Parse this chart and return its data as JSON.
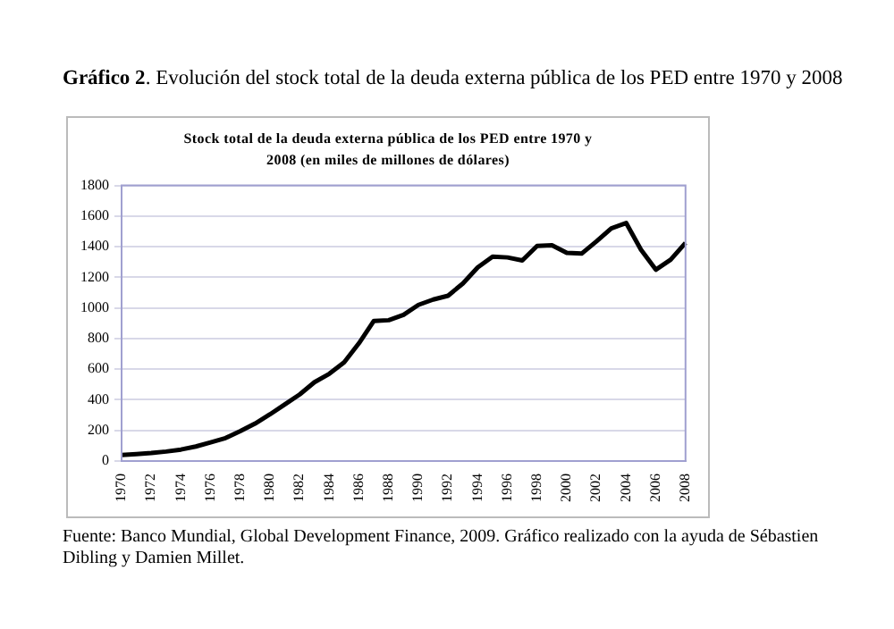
{
  "chart_data": {
    "type": "line",
    "title": "Gráfico 2. Evolución del stock total de la deuda externa pública de los PED entre 1970 y 2008",
    "subtitle": "Stock total de la deuda externa pública de los PED entre 1970 y 2008 (en miles de millones de dólares)",
    "categories": [
      "1970",
      null,
      "1972",
      null,
      "1974",
      null,
      "1976",
      null,
      "1978",
      null,
      "1980",
      null,
      "1982",
      null,
      "1984",
      null,
      "1986",
      null,
      "1988",
      null,
      "1990",
      null,
      "1992",
      null,
      "1994",
      null,
      "1996",
      null,
      "1998",
      null,
      "2000",
      null,
      "2002",
      null,
      "2004",
      null,
      "2006",
      null,
      "2008"
    ],
    "series": [
      {
        "color": "#000000",
        "values": [
          40,
          45,
          52,
          62,
          75,
          95,
          122,
          150,
          195,
          245,
          305,
          370,
          435,
          515,
          570,
          645,
          770,
          915,
          920,
          955,
          1020,
          1055,
          1080,
          1160,
          1265,
          1335,
          1330,
          1310,
          1405,
          1410,
          1360,
          1355,
          1435,
          1520,
          1555,
          1380,
          1250,
          1315,
          1425
        ]
      }
    ],
    "ylim": [
      0,
      1800
    ],
    "yticks": [
      0,
      200,
      400,
      600,
      800,
      1000,
      1200,
      1400,
      1600,
      1800
    ],
    "grid": "y",
    "legend": false,
    "marker": "none",
    "line_style": "solid",
    "annotations": [
      "Fuente: Banco Mundial, Global Development Finance, 2009. Gráfico realizado con la ayuda de Sébastien Dibling y Damien Millet."
    ]
  }
}
